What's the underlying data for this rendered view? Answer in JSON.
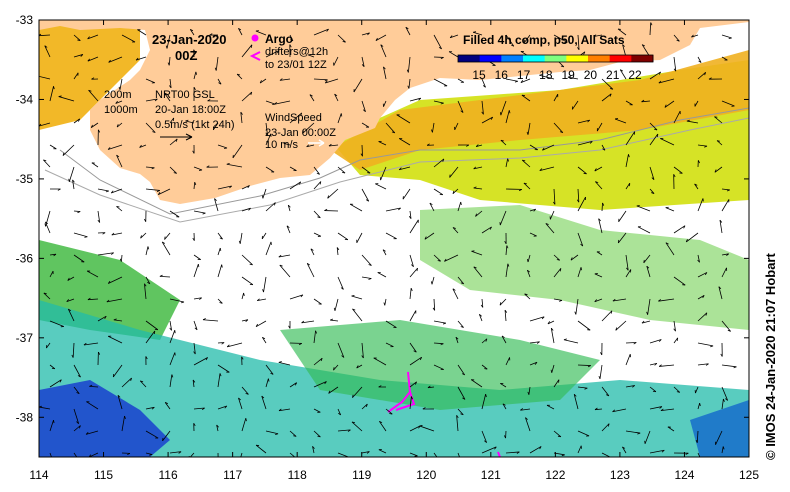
{
  "map": {
    "date_title": "23-Jan-2020",
    "time_title": "00Z",
    "argo_label": "Argo",
    "drifters_label": "drifters@12h",
    "drifters_to": "to 23/01 12Z",
    "product_title": "Filled 4h comp, p50, All Sats",
    "colorbar_ticks": [
      "15",
      "16",
      "17",
      "18",
      "19",
      "20",
      "21",
      "22"
    ],
    "colorbar_colors": [
      "#00007f",
      "#0000ff",
      "#007fff",
      "#00ffff",
      "#7fff7f",
      "#ffff00",
      "#ff7f00",
      "#ff0000",
      "#7f0000"
    ],
    "depth_labels": [
      "200m",
      "1000m"
    ],
    "current_source": "NRT00 GSL",
    "current_date": "20-Jan 18:00Z",
    "current_scale": "0.5m/s (1kt 24h)",
    "wind_title": "WindSpeed",
    "wind_date": "23-Jan 00:00Z",
    "wind_scale": "10 m/s",
    "credit": "© IMOS 24-Jan-2020 21:07 Hobart",
    "lon_ticks": [
      "114",
      "115",
      "116",
      "117",
      "118",
      "119",
      "120",
      "121",
      "122",
      "123",
      "124",
      "125"
    ],
    "lat_ticks": [
      "-33",
      "-34",
      "-35",
      "-36",
      "-37",
      "-38"
    ],
    "land_color": "#ffcc99",
    "lon_range": [
      114,
      125
    ],
    "lat_range": [
      -38.5,
      -33
    ]
  }
}
